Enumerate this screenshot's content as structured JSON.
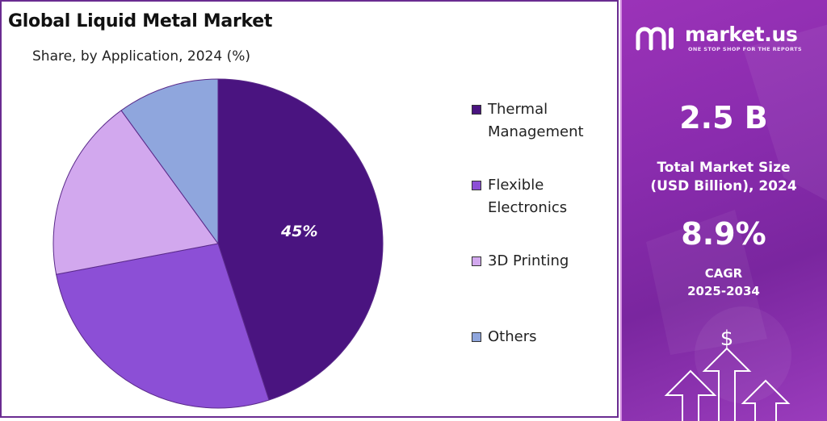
{
  "chart_data": {
    "type": "pie",
    "title": "Global Liquid Metal Market",
    "subtitle": "Share, by Application, 2024 (%)",
    "categories": [
      "Thermal Management",
      "Flexible Electronics",
      "3D Printing",
      "Others"
    ],
    "legend_labels": [
      [
        "Thermal",
        "Management"
      ],
      [
        "Flexible",
        "Electronics"
      ],
      [
        "3D Printing"
      ],
      [
        "Others"
      ]
    ],
    "values": [
      45,
      27,
      18,
      10
    ],
    "colors": [
      "#4a1480",
      "#8c4fd6",
      "#d2a8ee",
      "#8fa6dd"
    ],
    "data_labels": [
      "45%",
      "",
      "",
      ""
    ],
    "legend_position": "right"
  },
  "brand": {
    "name": "market.us",
    "tagline": "ONE STOP SHOP FOR THE REPORTS"
  },
  "stats": {
    "market_size_value": "2.5 B",
    "market_size_label_line1": "Total Market Size",
    "market_size_label_line2": "(USD Billion), 2024",
    "cagr_value": "8.9%",
    "cagr_label_line1": "CAGR",
    "cagr_label_line2": "2025-2034"
  },
  "icons": {
    "logo": "market-us-logo-icon",
    "dollar": "dollar-icon",
    "arrows": "growth-arrows-icon"
  }
}
